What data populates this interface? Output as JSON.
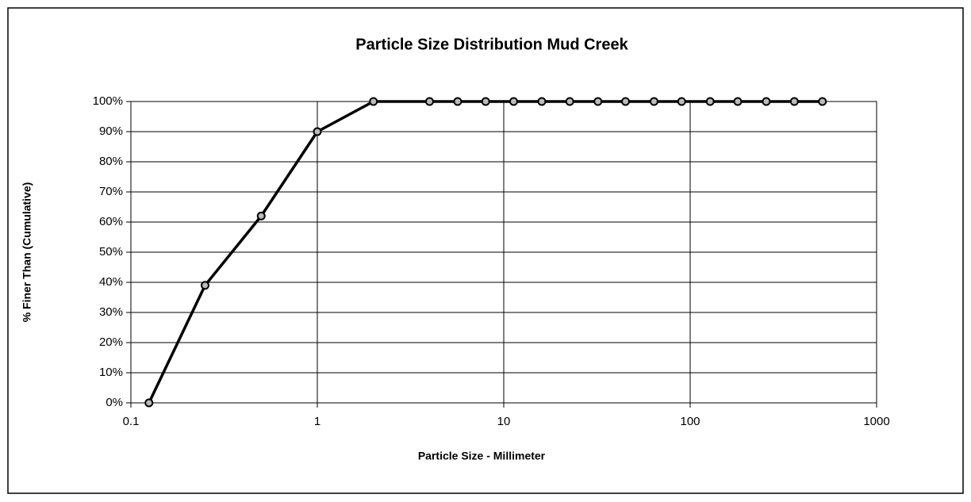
{
  "chart_data": {
    "type": "line",
    "title": "Particle Size Distribution Mud Creek",
    "x_label": "Particle Size - Millimeter",
    "y_label": "% Finer Than (Cumulative)",
    "x_log": true,
    "grid": true,
    "xlim": [
      0.1,
      1000
    ],
    "xticks": [
      0.1,
      1,
      10,
      100,
      1000
    ],
    "ylim": [
      0,
      100
    ],
    "yticks": [
      {
        "value": 0,
        "label": "0%"
      },
      {
        "value": 10,
        "label": "10%"
      },
      {
        "value": 20,
        "label": "20%"
      },
      {
        "value": 30,
        "label": "30%"
      },
      {
        "value": 40,
        "label": "40%"
      },
      {
        "value": 50,
        "label": "50%"
      },
      {
        "value": 60,
        "label": "60%"
      },
      {
        "value": 70,
        "label": "70%"
      },
      {
        "value": 80,
        "label": "80%"
      },
      {
        "value": 90,
        "label": "90%"
      },
      {
        "value": 100,
        "label": "100%"
      }
    ],
    "x": [
      0.125,
      0.25,
      0.5,
      1,
      2,
      4,
      5.66,
      8,
      11.3,
      16,
      22.6,
      32,
      45,
      64,
      90,
      128,
      180,
      256,
      362,
      512
    ],
    "series": [
      {
        "name": "Mud Creek",
        "color": "#000000",
        "values": [
          0,
          39,
          62,
          90,
          100,
          100,
          100,
          100,
          100,
          100,
          100,
          100,
          100,
          100,
          100,
          100,
          100,
          100,
          100,
          100
        ]
      }
    ]
  }
}
